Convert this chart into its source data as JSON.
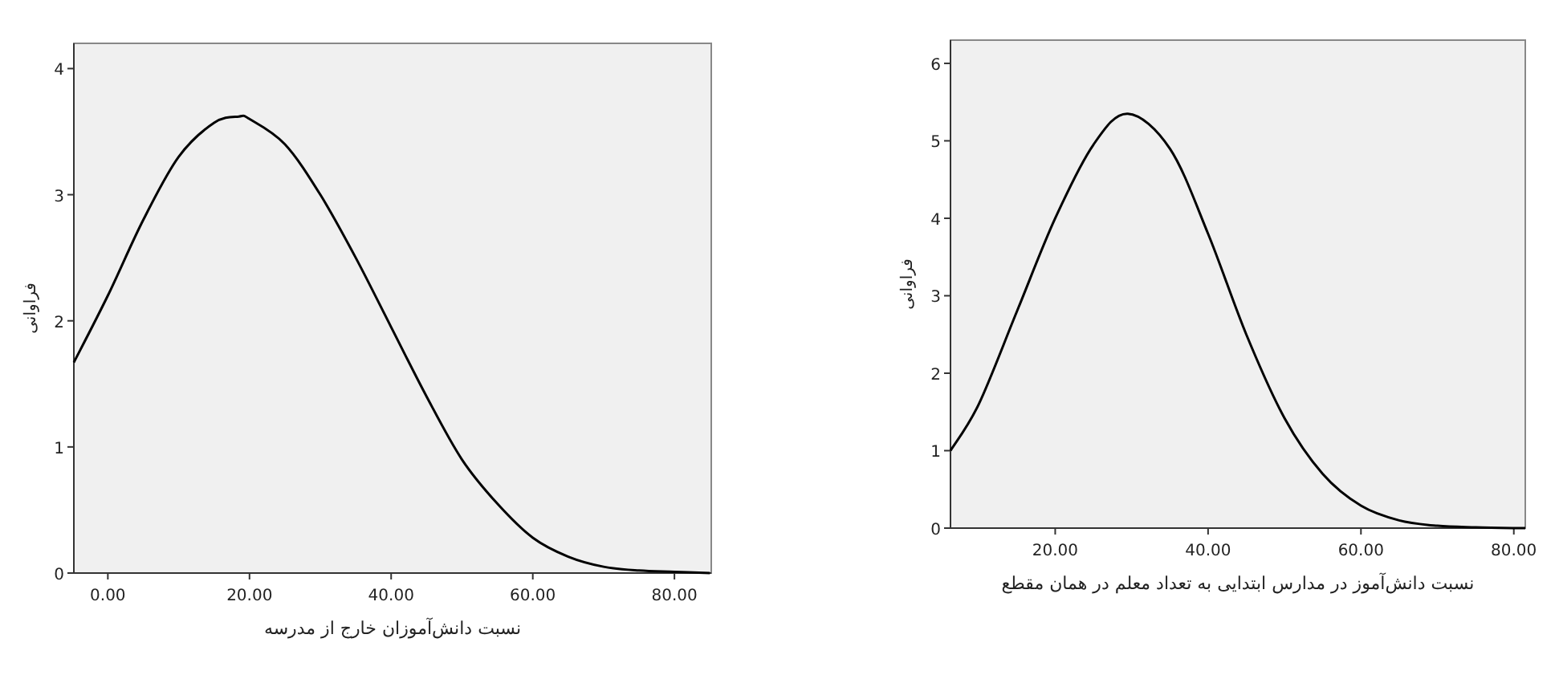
{
  "chart_data": [
    {
      "type": "line",
      "xlabel": "نسبت دانش‌آموزان خارج از مدرسه",
      "ylabel": "فراوانی",
      "xlim": [
        -4.8,
        85.2
      ],
      "ylim": [
        0,
        4.2
      ],
      "xticks": [
        {
          "value": 0,
          "label": "0.00"
        },
        {
          "value": 20,
          "label": "20.00"
        },
        {
          "value": 40,
          "label": "40.00"
        },
        {
          "value": 60,
          "label": "60.00"
        },
        {
          "value": 80,
          "label": "80.00"
        }
      ],
      "yticks": [
        0,
        1,
        2,
        3,
        4
      ],
      "grid": false,
      "series": [
        {
          "color": "#000000",
          "x": [
            -4.8,
            0,
            5,
            10,
            15,
            18.5,
            20,
            25,
            30,
            35,
            40,
            45,
            50,
            55,
            60,
            65,
            70,
            75,
            80,
            85
          ],
          "values": [
            1.67,
            2.2,
            2.8,
            3.3,
            3.57,
            3.62,
            3.6,
            3.4,
            3.0,
            2.5,
            1.95,
            1.4,
            0.9,
            0.55,
            0.28,
            0.13,
            0.05,
            0.02,
            0.01,
            0.0
          ]
        }
      ]
    },
    {
      "type": "line",
      "xlabel": "نسبت دانش‌آموز در مدارس ابتدایی به تعداد معلم در همان مقطع",
      "ylabel": "فراوانی",
      "xlim": [
        6.3,
        81.5
      ],
      "ylim": [
        0,
        6.3
      ],
      "xticks": [
        {
          "value": 20,
          "label": "20.00"
        },
        {
          "value": 40,
          "label": "40.00"
        },
        {
          "value": 60,
          "label": "60.00"
        },
        {
          "value": 80,
          "label": "80.00"
        }
      ],
      "yticks": [
        0,
        1,
        2,
        3,
        4,
        5,
        6
      ],
      "grid": false,
      "series": [
        {
          "color": "#000000",
          "x": [
            6.3,
            10,
            15,
            20,
            25,
            29.5,
            35,
            40,
            45,
            50,
            55,
            60,
            65,
            70,
            75,
            80,
            81.5
          ],
          "values": [
            1.0,
            1.6,
            2.8,
            4.0,
            4.95,
            5.35,
            4.9,
            3.8,
            2.5,
            1.42,
            0.7,
            0.29,
            0.1,
            0.03,
            0.01,
            0.0,
            0.0
          ]
        }
      ]
    }
  ]
}
